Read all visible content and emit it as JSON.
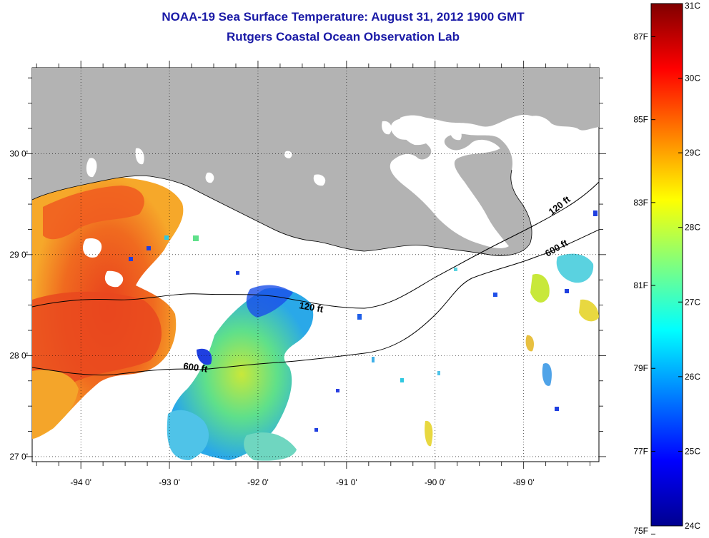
{
  "title": {
    "line1": "NOAA-19 Sea Surface Temperature:  August 31, 2012 1900 GMT",
    "line2": "Rutgers Coastal Ocean Observation Lab"
  },
  "map": {
    "lon_labels": [
      "-94 0'",
      "-93 0'",
      "-92 0'",
      "-91 0'",
      "-90 0'",
      "-89 0'"
    ],
    "lat_labels": [
      "30 0'",
      "29 0'",
      "28 0'",
      "27 0'"
    ],
    "lon_range": [
      -94.55,
      -88.15
    ],
    "lat_range": [
      26.95,
      30.85
    ],
    "contours": {
      "shallow": "120 ft",
      "deep": "600 ft"
    },
    "land_color": "#b3b3b3",
    "no_data_color": "#ffffff"
  },
  "colorbar": {
    "celsius_labels": [
      "31C",
      "30C",
      "29C",
      "28C",
      "27C",
      "26C",
      "25C",
      "24C"
    ],
    "fahrenheit_labels": [
      "87F",
      "85F",
      "83F",
      "81F",
      "79F",
      "77F",
      "75F"
    ],
    "range_c": [
      24,
      31
    ],
    "colormap": "jet"
  }
}
